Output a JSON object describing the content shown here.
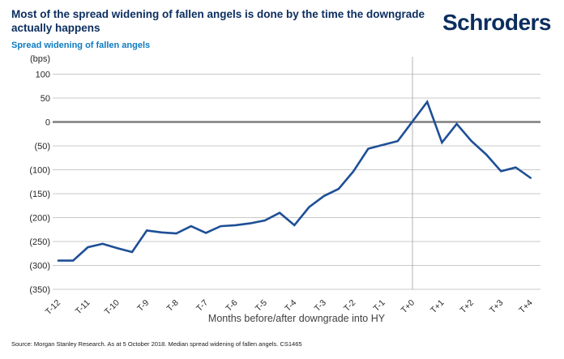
{
  "header": {
    "title": "Most of the spread widening of fallen angels is done by the time the downgrade actually happens",
    "subtitle": "Spread widening of fallen angels",
    "logo": "Schroders"
  },
  "footer": {
    "source": "Source: Morgan Stanley Research. As at 5 October 2018. Median spread widening of fallen angels. CS1465"
  },
  "colors": {
    "navy": "#0b2d5e",
    "subtitle_blue": "#0e7ac0",
    "line_blue": "#1e4f96",
    "grid": "#c9c9c9",
    "zero_line": "#7f7f7f",
    "event_line": "#b3b3b3",
    "tick_text": "#262626",
    "axis_title_text": "#404040"
  },
  "chart_data": {
    "type": "line",
    "unit_label": "(bps)",
    "x_axis_title": "Months before/after downgrade into HY",
    "x_tick_labels": [
      "T-12",
      "T-11",
      "T-10",
      "T-9",
      "T-8",
      "T-7",
      "T-6",
      "T-5",
      "T-4",
      "T-3",
      "T-2",
      "T-1",
      "T+0",
      "T+1",
      "T+2",
      "T+3",
      "T+4"
    ],
    "x_tick_months": [
      -12,
      -11,
      -10,
      -9,
      -8,
      -7,
      -6,
      -5,
      -4,
      -3,
      -2,
      -1,
      0,
      1,
      2,
      3,
      4
    ],
    "y_ticks": [
      100,
      50,
      0,
      -50,
      -100,
      -150,
      -200,
      -250,
      -300,
      -350
    ],
    "y_tick_labels": [
      "100",
      "50",
      "0",
      "(50)",
      "(100)",
      "(150)",
      "(200)",
      "(250)",
      "(300)",
      "(350)"
    ],
    "ylim": [
      -350,
      100
    ],
    "xlim": [
      -12,
      4
    ],
    "grid": true,
    "legend": false,
    "event_line_x": 0,
    "series": [
      {
        "name": "Median spread widening of fallen angels",
        "x": [
          -12,
          -11.5,
          -11,
          -10.5,
          -10,
          -9.5,
          -9,
          -8.5,
          -8,
          -7.5,
          -7,
          -6.5,
          -6,
          -5.5,
          -5,
          -4.5,
          -4,
          -3.5,
          -3,
          -2.5,
          -2,
          -1.5,
          -1,
          -0.5,
          0,
          0.5,
          1,
          1.5,
          2,
          2.5,
          3,
          3.5,
          4
        ],
        "values": [
          -290,
          -290,
          -262,
          -255,
          -264,
          -272,
          -227,
          -231,
          -233,
          -218,
          -232,
          -218,
          -216,
          -212,
          -206,
          -190,
          -216,
          -178,
          -155,
          -140,
          -103,
          -56,
          -48,
          -40,
          1,
          42,
          -43,
          -4,
          -40,
          -68,
          -103,
          -95,
          -117
        ]
      }
    ]
  }
}
